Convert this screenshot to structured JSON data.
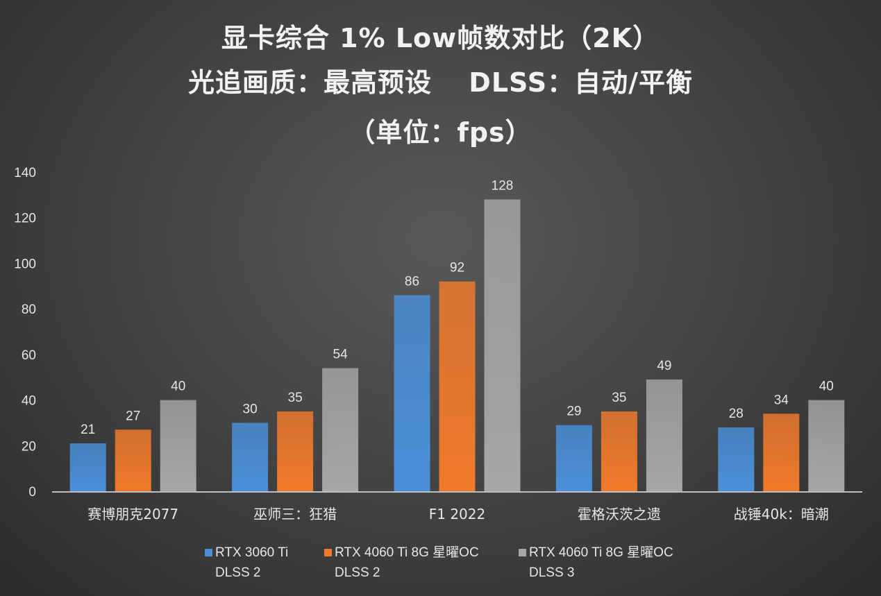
{
  "chart_data": {
    "type": "bar",
    "title": [
      "显卡综合 1% Low帧数对比（2K）",
      "光追画质：最高预设　 DLSS：自动/平衡",
      "（单位：fps）"
    ],
    "categories": [
      "赛博朋克2077",
      "巫师三：狂猎",
      "F1 2022",
      "霍格沃茨之遗",
      "战锤40k：暗潮"
    ],
    "series": [
      {
        "name": [
          "RTX 3060 Ti",
          "DLSS 2"
        ],
        "color": "#4a90d9",
        "values": [
          21,
          30,
          86,
          29,
          28
        ]
      },
      {
        "name": [
          "RTX 4060 Ti 8G 星曜OC",
          "DLSS 2"
        ],
        "color": "#f07a2a",
        "values": [
          27,
          35,
          92,
          35,
          34
        ]
      },
      {
        "name": [
          "RTX 4060 Ti 8G 星曜OC",
          "DLSS 3"
        ],
        "color": "#a6a6a6",
        "values": [
          40,
          54,
          128,
          49,
          40
        ]
      }
    ],
    "yticks": [
      0,
      20,
      40,
      60,
      80,
      100,
      120,
      140
    ],
    "ylim": [
      0,
      140
    ],
    "grid": false,
    "legend": "bottom",
    "xlabel": "",
    "ylabel": ""
  }
}
